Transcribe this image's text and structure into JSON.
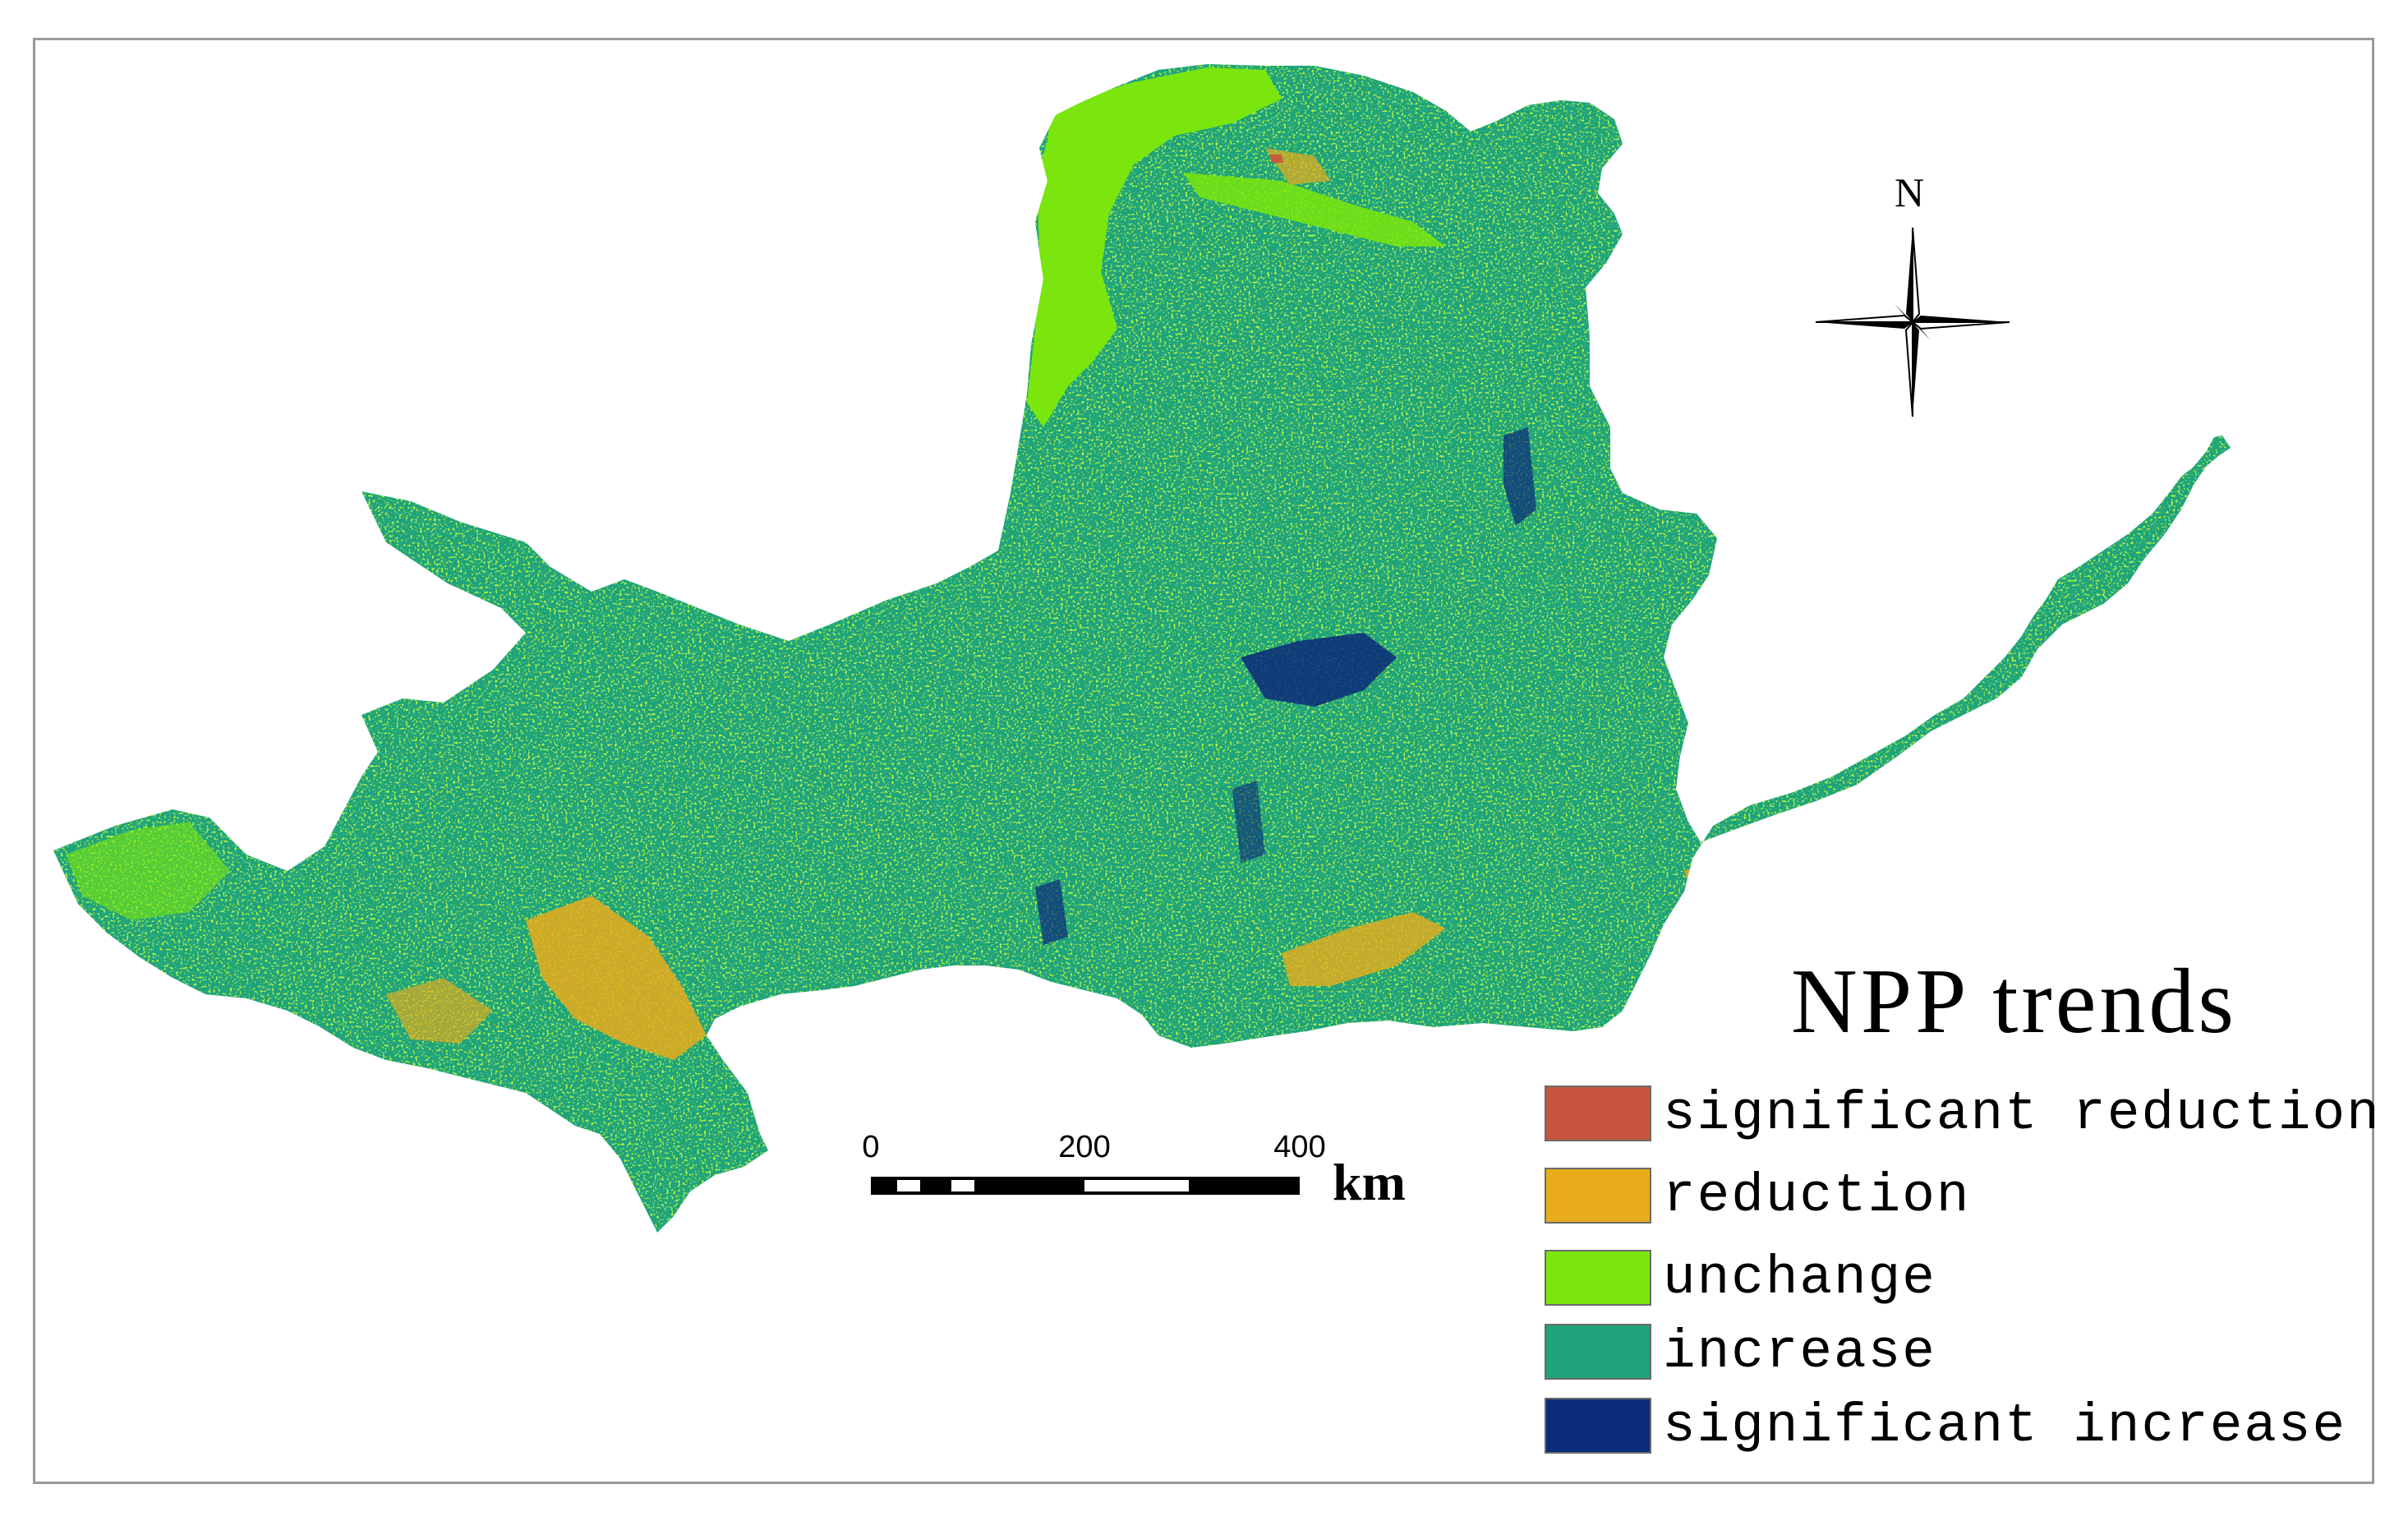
{
  "legend": {
    "title": "NPP trends",
    "items": [
      {
        "label": "significant reduction",
        "color": "#c8553d"
      },
      {
        "label": "reduction",
        "color": "#e9ac1c"
      },
      {
        "label": "unchange",
        "color": "#7ae60d"
      },
      {
        "label": "increase",
        "color": "#1ea37c"
      },
      {
        "label": "significant increase",
        "color": "#0a2a7a"
      }
    ]
  },
  "scale_bar": {
    "ticks": [
      "0",
      "200",
      "400"
    ],
    "unit": "km"
  },
  "north_arrow": {
    "label": "N",
    "icon": "compass-rose-icon"
  }
}
